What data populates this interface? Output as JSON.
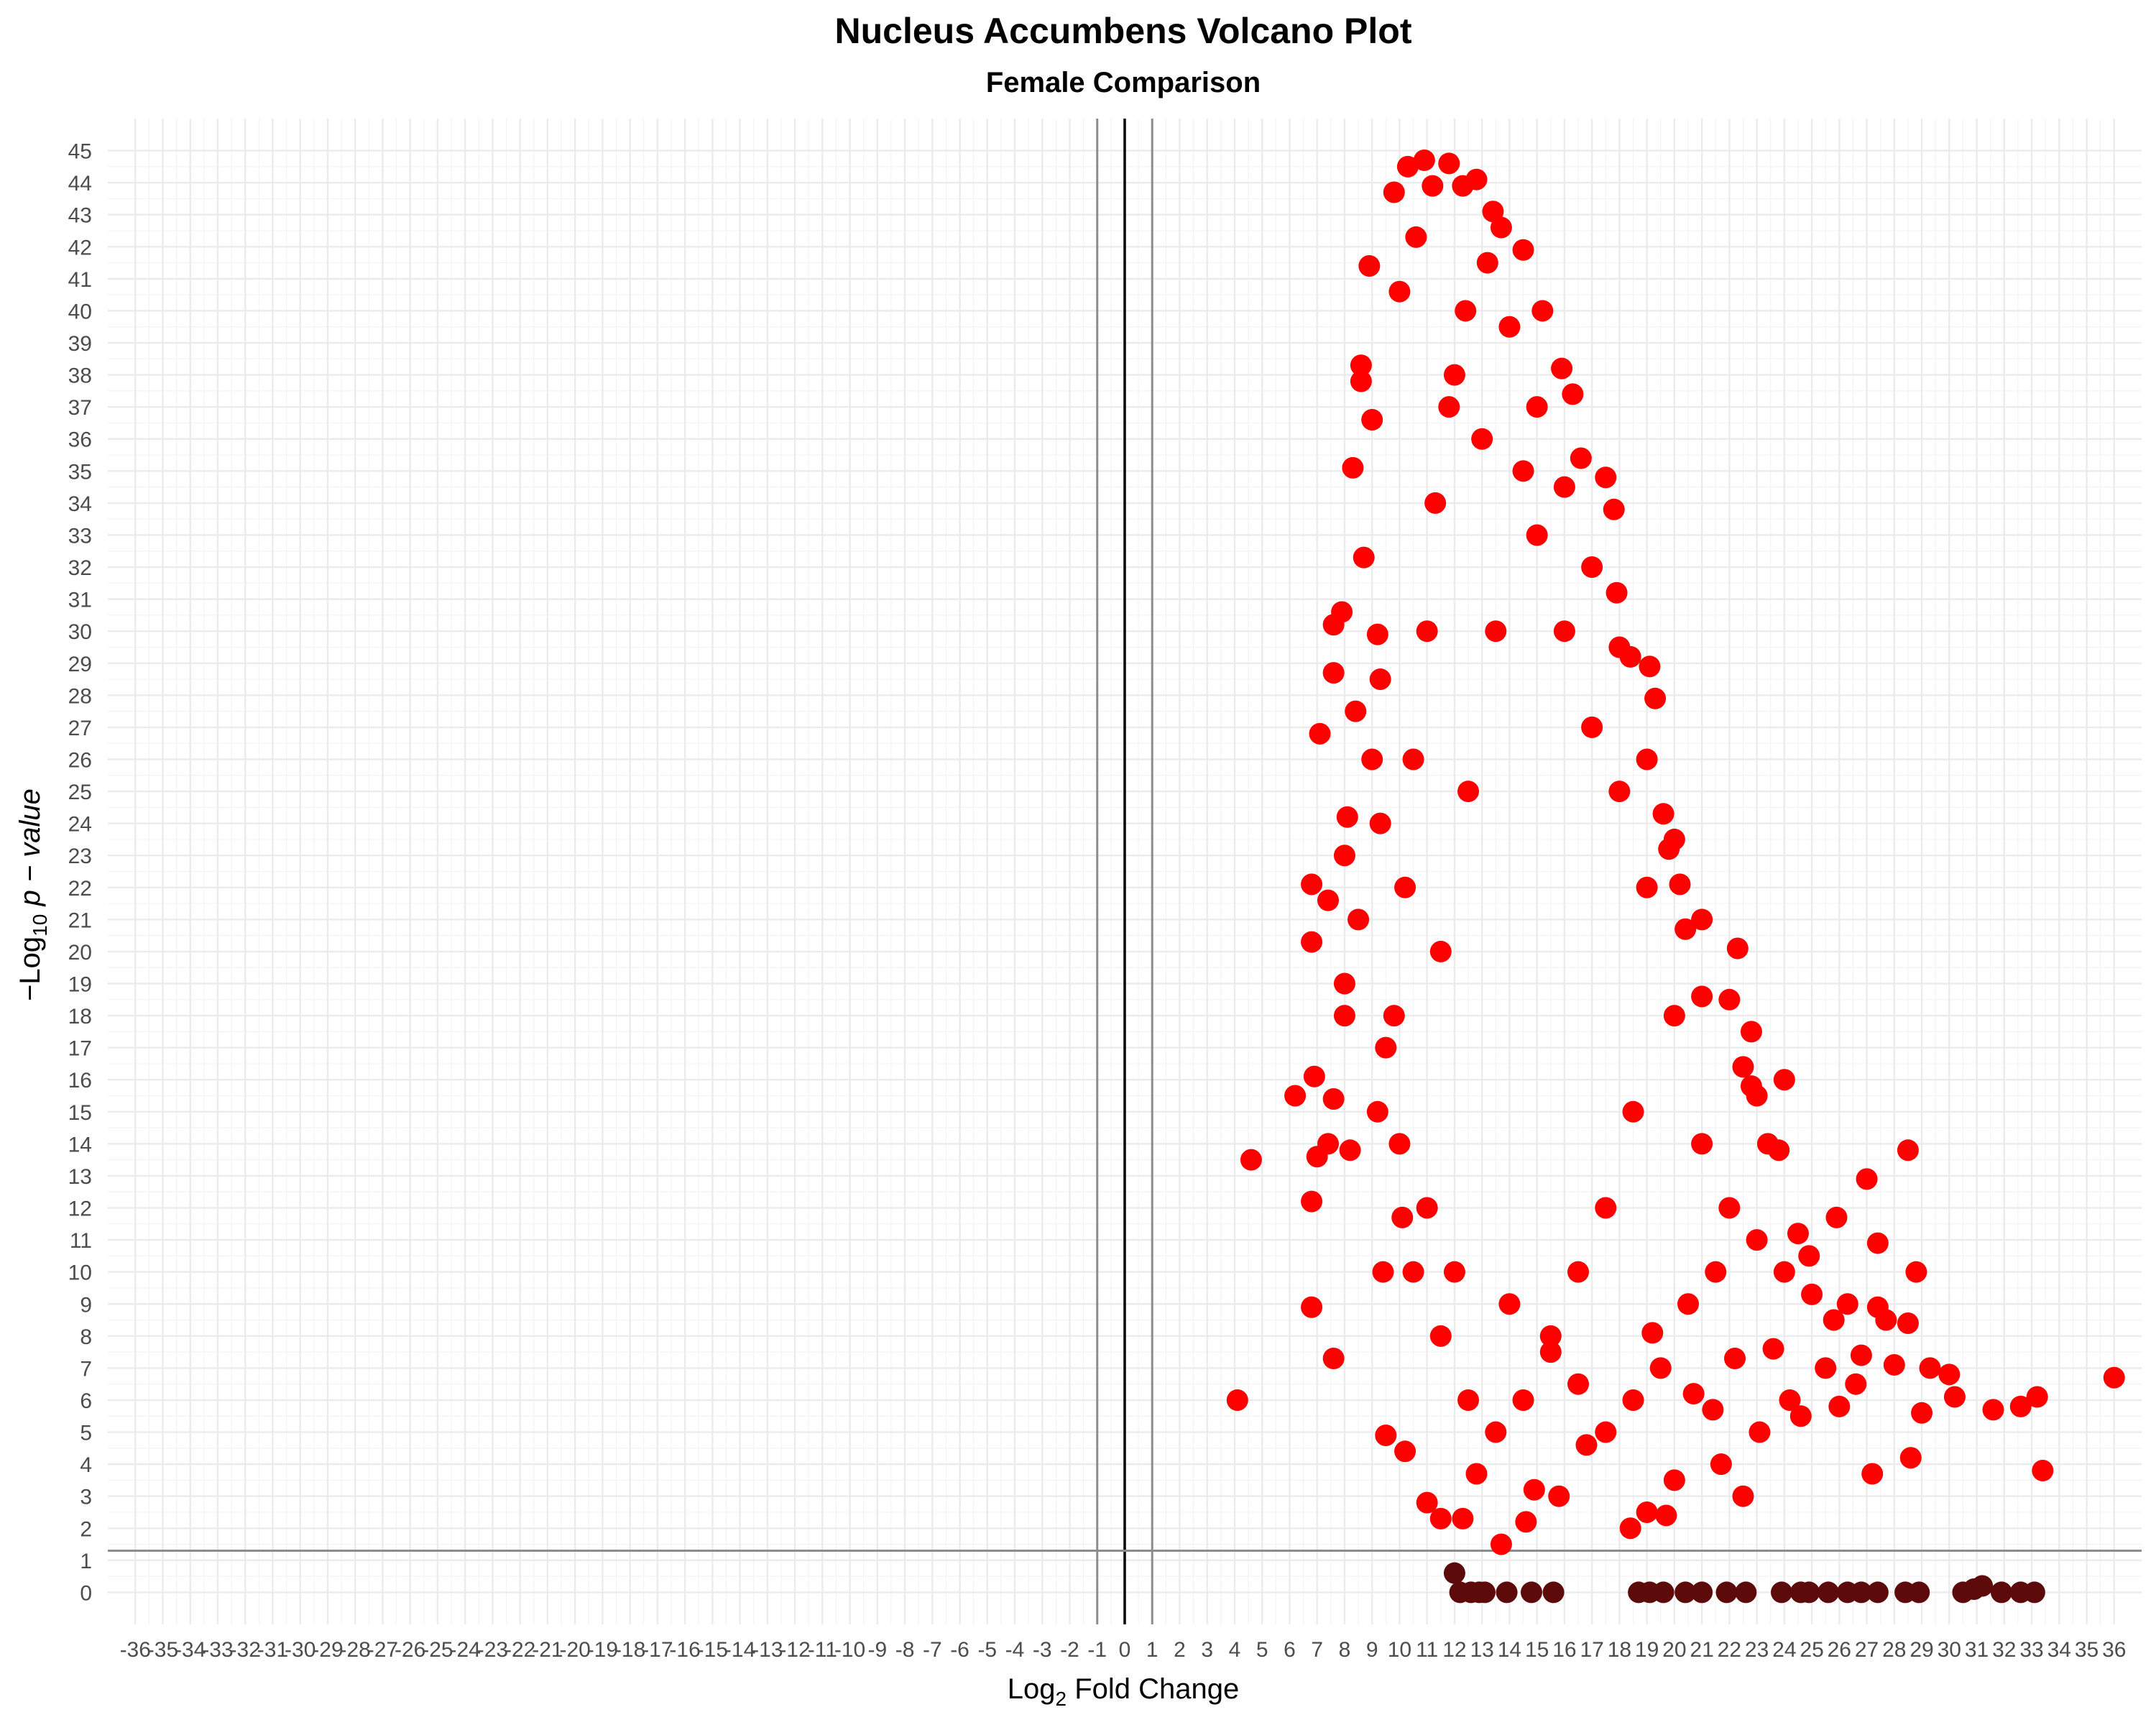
{
  "chart_data": {
    "type": "scatter",
    "title": "Nucleus Accumbens Volcano Plot",
    "subtitle": "Female Comparison",
    "xlabel": {
      "prefix": "Log",
      "sub": "2",
      "rest": " Fold Change"
    },
    "ylabel": {
      "prefix": "−Log",
      "sub": "10",
      "rest": " p − value"
    },
    "xlim": [
      -37,
      37
    ],
    "ylim": [
      -1,
      46
    ],
    "x_ticks": [
      -36,
      -35,
      -34,
      -33,
      -32,
      -31,
      -30,
      -29,
      -28,
      -27,
      -26,
      -25,
      -24,
      -23,
      -22,
      -21,
      -20,
      -19,
      -18,
      -17,
      -16,
      -15,
      -14,
      -13,
      -12,
      -11,
      -10,
      -9,
      -8,
      -7,
      -6,
      -5,
      -4,
      -3,
      -2,
      -1,
      0,
      1,
      2,
      3,
      4,
      5,
      6,
      7,
      8,
      9,
      10,
      11,
      12,
      13,
      14,
      15,
      16,
      17,
      18,
      19,
      20,
      21,
      22,
      23,
      24,
      25,
      26,
      27,
      28,
      29,
      30,
      31,
      32,
      33,
      34,
      35,
      36
    ],
    "y_ticks": [
      0,
      1,
      2,
      3,
      4,
      5,
      6,
      7,
      8,
      9,
      10,
      11,
      12,
      13,
      14,
      15,
      16,
      17,
      18,
      19,
      20,
      21,
      22,
      23,
      24,
      25,
      26,
      27,
      28,
      29,
      30,
      31,
      32,
      33,
      34,
      35,
      36,
      37,
      38,
      39,
      40,
      41,
      42,
      43,
      44,
      45
    ],
    "vlines": [
      -1,
      0,
      1
    ],
    "hline": 1.3,
    "grid": true,
    "legend": "none",
    "colors": {
      "significant": "#ff0000",
      "not_significant": "#5c0a0a",
      "threshold_line": "#8c8c8c",
      "zero_line": "#000000"
    },
    "series": [
      {
        "group": "significant",
        "points": [
          [
            4.1,
            6.0
          ],
          [
            4.6,
            13.5
          ],
          [
            6.2,
            15.5
          ],
          [
            6.8,
            22.1
          ],
          [
            6.8,
            20.3
          ],
          [
            6.9,
            16.1
          ],
          [
            6.8,
            12.2
          ],
          [
            6.8,
            8.9
          ],
          [
            7.0,
            13.6
          ],
          [
            7.1,
            26.8
          ],
          [
            7.4,
            21.6
          ],
          [
            7.6,
            30.2
          ],
          [
            7.6,
            28.7
          ],
          [
            7.6,
            15.4
          ],
          [
            7.6,
            7.3
          ],
          [
            7.9,
            30.6
          ],
          [
            8.0,
            23.0
          ],
          [
            8.3,
            35.1
          ],
          [
            8.6,
            38.3
          ],
          [
            8.6,
            37.8
          ],
          [
            8.7,
            32.3
          ],
          [
            8.9,
            41.4
          ],
          [
            9.0,
            36.6
          ],
          [
            9.2,
            29.9
          ],
          [
            9.3,
            24.0
          ],
          [
            9.4,
            10.0
          ],
          [
            9.5,
            17.0
          ],
          [
            9.8,
            43.7
          ],
          [
            10.0,
            40.6
          ],
          [
            10.1,
            11.7
          ],
          [
            10.3,
            44.5
          ],
          [
            10.6,
            42.3
          ],
          [
            10.9,
            44.7
          ],
          [
            11.2,
            43.9
          ],
          [
            11.8,
            44.6
          ],
          [
            12.3,
            43.9
          ],
          [
            12.8,
            44.1
          ],
          [
            13.4,
            43.1
          ],
          [
            13.7,
            42.6
          ],
          [
            14.5,
            41.9
          ],
          [
            15.2,
            40.0
          ],
          [
            15.9,
            38.2
          ],
          [
            16.3,
            37.4
          ],
          [
            16.6,
            35.4
          ],
          [
            17.5,
            34.8
          ],
          [
            17.8,
            33.8
          ],
          [
            17.9,
            31.2
          ],
          [
            18.4,
            29.2
          ],
          [
            19.1,
            28.9
          ],
          [
            19.3,
            27.9
          ],
          [
            19.6,
            24.3
          ],
          [
            19.8,
            23.2
          ],
          [
            20.2,
            22.1
          ],
          [
            20.4,
            20.7
          ],
          [
            21.0,
            18.6
          ],
          [
            22.3,
            20.1
          ],
          [
            22.8,
            17.5
          ],
          [
            22.8,
            15.8
          ],
          [
            23.4,
            14.0
          ],
          [
            23.8,
            13.8
          ],
          [
            24.5,
            11.2
          ],
          [
            24.9,
            10.5
          ],
          [
            25.9,
            11.7
          ],
          [
            27.0,
            12.9
          ],
          [
            27.4,
            10.9
          ],
          [
            27.7,
            8.5
          ],
          [
            28.5,
            13.8
          ],
          [
            28.5,
            8.4
          ],
          [
            28.8,
            10.0
          ],
          [
            29.3,
            7.0
          ],
          [
            30.2,
            6.1
          ],
          [
            31.6,
            5.7
          ],
          [
            32.6,
            5.8
          ],
          [
            33.2,
            6.1
          ],
          [
            33.4,
            3.8
          ],
          [
            36.0,
            6.7
          ],
          [
            11.0,
            2.8
          ],
          [
            11.5,
            2.3
          ],
          [
            12.3,
            2.3
          ],
          [
            13.7,
            1.5
          ],
          [
            14.6,
            2.2
          ],
          [
            15.8,
            3.0
          ],
          [
            18.4,
            2.0
          ],
          [
            19.0,
            2.5
          ],
          [
            19.7,
            2.4
          ],
          [
            22.5,
            3.0
          ],
          [
            10.2,
            4.4
          ],
          [
            9.5,
            4.9
          ],
          [
            12.8,
            3.7
          ],
          [
            14.9,
            3.2
          ],
          [
            16.8,
            4.6
          ],
          [
            20.0,
            3.5
          ],
          [
            21.7,
            4.0
          ],
          [
            23.1,
            5.0
          ],
          [
            24.6,
            5.5
          ],
          [
            26.0,
            5.8
          ],
          [
            27.2,
            3.7
          ],
          [
            28.6,
            4.2
          ],
          [
            29.0,
            5.6
          ],
          [
            30.0,
            6.8
          ],
          [
            25.5,
            7.0
          ],
          [
            26.8,
            7.4
          ],
          [
            28.0,
            7.1
          ],
          [
            25.0,
            9.3
          ],
          [
            24.0,
            10.0
          ],
          [
            23.0,
            11.0
          ],
          [
            22.0,
            12.0
          ],
          [
            21.0,
            14.0
          ],
          [
            24.0,
            16.0
          ],
          [
            22.5,
            16.4
          ],
          [
            11.5,
            20.0
          ],
          [
            12.5,
            25.0
          ],
          [
            13.5,
            30.0
          ],
          [
            14.5,
            35.0
          ],
          [
            12.0,
            38.0
          ],
          [
            13.0,
            36.0
          ],
          [
            15.0,
            33.0
          ],
          [
            16.0,
            30.0
          ],
          [
            17.0,
            27.0
          ],
          [
            18.0,
            25.0
          ],
          [
            19.0,
            22.0
          ],
          [
            20.0,
            18.0
          ],
          [
            18.5,
            15.0
          ],
          [
            17.5,
            12.0
          ],
          [
            16.5,
            10.0
          ],
          [
            15.5,
            8.0
          ],
          [
            14.5,
            6.0
          ],
          [
            13.5,
            5.0
          ],
          [
            12.5,
            6.0
          ],
          [
            11.5,
            8.0
          ],
          [
            10.5,
            10.0
          ],
          [
            10.0,
            14.0
          ],
          [
            9.8,
            18.0
          ],
          [
            10.2,
            22.0
          ],
          [
            10.5,
            26.0
          ],
          [
            11.0,
            30.0
          ],
          [
            11.3,
            34.0
          ],
          [
            11.8,
            37.0
          ],
          [
            12.4,
            40.0
          ],
          [
            13.2,
            41.5
          ],
          [
            14.0,
            39.5
          ],
          [
            15.0,
            37.0
          ],
          [
            16.0,
            34.5
          ],
          [
            17.0,
            32.0
          ],
          [
            18.0,
            29.5
          ],
          [
            19.0,
            26.0
          ],
          [
            20.0,
            23.5
          ],
          [
            21.0,
            21.0
          ],
          [
            22.0,
            18.5
          ],
          [
            23.0,
            15.5
          ],
          [
            21.5,
            10.0
          ],
          [
            20.5,
            9.0
          ],
          [
            19.5,
            7.0
          ],
          [
            18.5,
            6.0
          ],
          [
            17.5,
            5.0
          ],
          [
            16.5,
            6.5
          ],
          [
            15.5,
            7.5
          ],
          [
            14.0,
            9.0
          ],
          [
            12.0,
            10.0
          ],
          [
            11.0,
            12.0
          ],
          [
            8.0,
            19.0
          ],
          [
            8.5,
            21.0
          ],
          [
            9.0,
            26.0
          ],
          [
            7.4,
            14.0
          ],
          [
            8.2,
            13.8
          ],
          [
            9.2,
            15.0
          ],
          [
            8.0,
            18.0
          ],
          [
            9.3,
            28.5
          ],
          [
            8.4,
            27.5
          ],
          [
            8.1,
            24.2
          ],
          [
            26.3,
            9.0
          ],
          [
            25.8,
            8.5
          ],
          [
            27.4,
            8.9
          ],
          [
            26.6,
            6.5
          ],
          [
            24.2,
            6.0
          ],
          [
            23.6,
            7.6
          ],
          [
            22.2,
            7.3
          ],
          [
            21.4,
            5.7
          ],
          [
            20.7,
            6.2
          ],
          [
            19.2,
            8.1
          ]
        ]
      },
      {
        "group": "not_significant",
        "points": [
          [
            12.0,
            0.6
          ],
          [
            12.2,
            0.0
          ],
          [
            12.6,
            0.0
          ],
          [
            12.9,
            0.0
          ],
          [
            13.1,
            0.0
          ],
          [
            13.9,
            0.0
          ],
          [
            14.8,
            0.0
          ],
          [
            15.6,
            0.0
          ],
          [
            18.7,
            0.0
          ],
          [
            19.1,
            0.0
          ],
          [
            19.6,
            0.0
          ],
          [
            20.4,
            0.0
          ],
          [
            21.0,
            0.0
          ],
          [
            21.9,
            0.0
          ],
          [
            22.6,
            0.0
          ],
          [
            23.9,
            0.0
          ],
          [
            24.6,
            0.0
          ],
          [
            24.9,
            0.0
          ],
          [
            25.6,
            0.0
          ],
          [
            26.3,
            0.0
          ],
          [
            26.8,
            0.0
          ],
          [
            27.4,
            0.0
          ],
          [
            28.4,
            0.0
          ],
          [
            28.9,
            0.0
          ],
          [
            30.5,
            0.0
          ],
          [
            30.9,
            0.1
          ],
          [
            31.2,
            0.2
          ],
          [
            31.9,
            0.0
          ],
          [
            32.6,
            0.0
          ],
          [
            33.1,
            0.0
          ]
        ]
      }
    ]
  }
}
